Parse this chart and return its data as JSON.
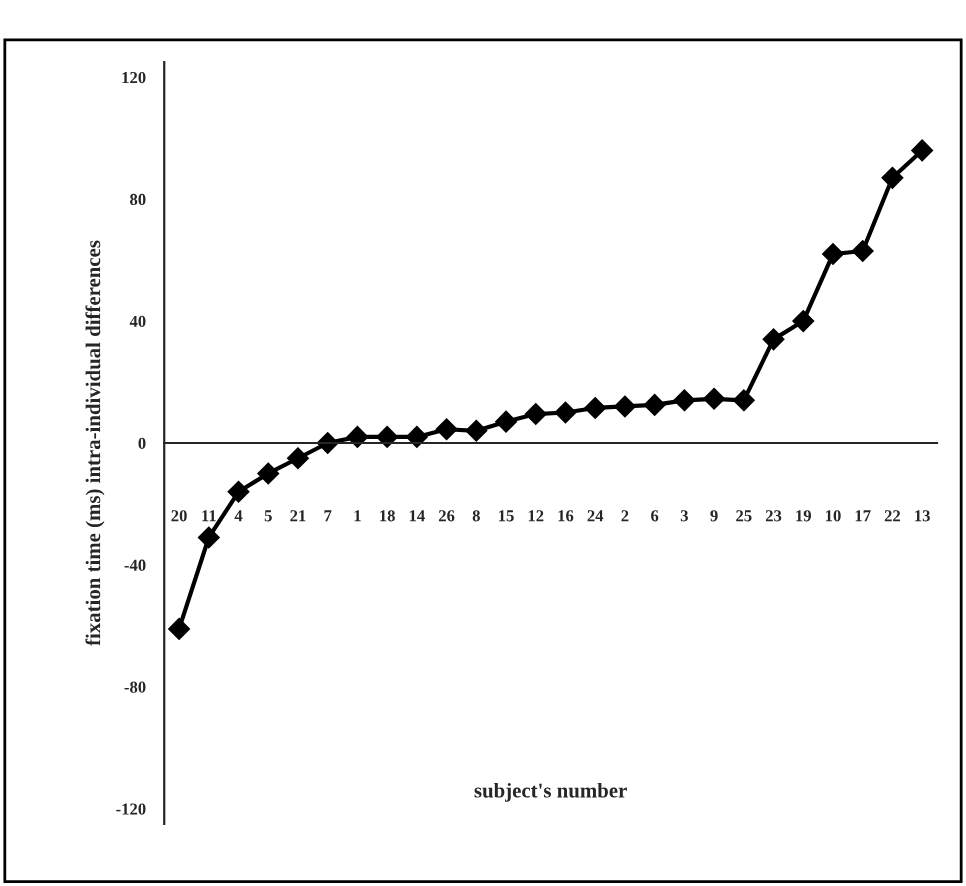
{
  "chart_data": {
    "type": "line",
    "xlabel": "subject's number",
    "ylabel": "fixation time (ms) intra-individual differences",
    "categories": [
      "20",
      "11",
      "4",
      "5",
      "21",
      "7",
      "1",
      "18",
      "14",
      "26",
      "8",
      "15",
      "12",
      "16",
      "24",
      "2",
      "6",
      "3",
      "9",
      "25",
      "23",
      "19",
      "10",
      "17",
      "22",
      "13"
    ],
    "series": [
      {
        "color": "#000000",
        "values": [
          -61,
          -31,
          -16,
          -10,
          -5,
          0,
          2,
          2,
          2,
          4.5,
          4,
          7,
          9.5,
          10,
          11.5,
          12,
          12.5,
          14,
          14.5,
          14,
          34,
          40,
          62,
          63,
          87,
          96
        ]
      }
    ],
    "ylim": [
      -125,
      125
    ],
    "yticks": [
      -120,
      -80,
      -40,
      0,
      40,
      80,
      120
    ],
    "marker": "diamond",
    "line_style": "solid",
    "legend": false
  }
}
